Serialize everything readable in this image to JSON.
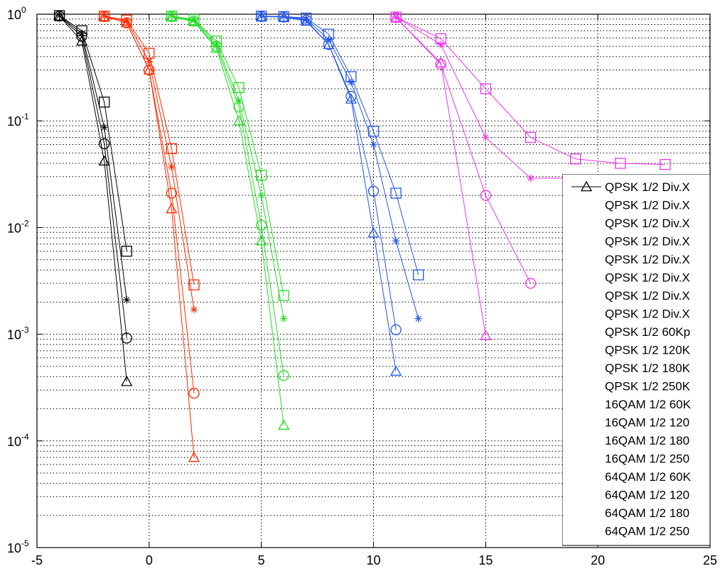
{
  "chart_data": {
    "type": "line",
    "title": "",
    "xlabel": "",
    "ylabel": "",
    "xlim": [
      -5,
      25
    ],
    "ylim": [
      1e-05,
      1
    ],
    "yscale": "log",
    "grid": true,
    "x_ticks": [
      "-5",
      "0",
      "5",
      "10",
      "15",
      "20",
      "25"
    ],
    "y_ticks": [
      {
        "base": "10",
        "exp": "0"
      },
      {
        "base": "10",
        "exp": "-1"
      },
      {
        "base": "10",
        "exp": "-2"
      },
      {
        "base": "10",
        "exp": "-3"
      },
      {
        "base": "10",
        "exp": "-4"
      },
      {
        "base": "10",
        "exp": "-5"
      }
    ],
    "legend_position": "right",
    "legend": [
      "QPSK 1/2 Div.X",
      "QPSK 1/2 Div.X",
      "QPSK 1/2 Div.X",
      "QPSK 1/2 Div.X",
      "QPSK 1/2 Div.X",
      "QPSK 1/2 Div.X",
      "QPSK 1/2 Div.X",
      "QPSK 1/2 Div.X",
      "QPSK 1/2 60Kp",
      "QPSK 1/2 120K",
      "QPSK 1/2 180K",
      "QPSK 1/2 250K",
      "16QAM 1/2 60K",
      "16QAM 1/2 120",
      "16QAM 1/2 180",
      "16QAM 1/2 250",
      "64QAM 1/2 60K",
      "64QAM 1/2 120",
      "64QAM 1/2 180",
      "64QAM 1/2 250"
    ],
    "series": [
      {
        "color": "#000000",
        "marker": "triangle",
        "x": [
          -4,
          -3,
          -2,
          -1
        ],
        "y": [
          0.96,
          0.56,
          0.042,
          0.00036
        ]
      },
      {
        "color": "#000000",
        "marker": "circle",
        "x": [
          -4,
          -3,
          -2,
          -1
        ],
        "y": [
          0.96,
          0.62,
          0.061,
          0.00092
        ]
      },
      {
        "color": "#000000",
        "marker": "star",
        "x": [
          -4,
          -3,
          -2,
          -1
        ],
        "y": [
          0.97,
          0.66,
          0.087,
          0.0021
        ]
      },
      {
        "color": "#000000",
        "marker": "square",
        "x": [
          -4,
          -3,
          -2,
          -1
        ],
        "y": [
          0.97,
          0.7,
          0.15,
          0.006
        ]
      },
      {
        "color": "#ff2a00",
        "marker": "triangle",
        "x": [
          -2,
          -1,
          0,
          1,
          2
        ],
        "y": [
          0.95,
          0.83,
          0.3,
          0.015,
          7e-05
        ]
      },
      {
        "color": "#ff2a00",
        "marker": "circle",
        "x": [
          -2,
          -1,
          0,
          1,
          2
        ],
        "y": [
          0.95,
          0.83,
          0.3,
          0.021,
          0.00028
        ]
      },
      {
        "color": "#ff2a00",
        "marker": "star",
        "x": [
          -2,
          -1,
          0,
          1,
          2
        ],
        "y": [
          0.96,
          0.86,
          0.36,
          0.037,
          0.0017
        ]
      },
      {
        "color": "#ff2a00",
        "marker": "square",
        "x": [
          -2,
          -1,
          0,
          1,
          2
        ],
        "y": [
          0.96,
          0.88,
          0.43,
          0.055,
          0.0029
        ]
      },
      {
        "color": "#22dd22",
        "marker": "triangle",
        "x": [
          1,
          2,
          3,
          4,
          5,
          6
        ],
        "y": [
          0.95,
          0.85,
          0.48,
          0.1,
          0.0075,
          0.00014
        ]
      },
      {
        "color": "#22dd22",
        "marker": "circle",
        "x": [
          1,
          2,
          3,
          4,
          5,
          6
        ],
        "y": [
          0.95,
          0.86,
          0.5,
          0.135,
          0.0105,
          0.00041
        ]
      },
      {
        "color": "#22dd22",
        "marker": "star",
        "x": [
          1,
          2,
          3,
          4,
          5,
          6
        ],
        "y": [
          0.96,
          0.88,
          0.53,
          0.155,
          0.02,
          0.0014
        ]
      },
      {
        "color": "#22dd22",
        "marker": "square",
        "x": [
          1,
          2,
          3,
          4,
          5,
          6
        ],
        "y": [
          0.96,
          0.89,
          0.56,
          0.205,
          0.031,
          0.0023
        ]
      },
      {
        "color": "#2255ee",
        "marker": "triangle",
        "x": [
          5,
          6,
          7,
          8,
          9,
          10,
          11
        ],
        "y": [
          0.95,
          0.94,
          0.86,
          0.52,
          0.16,
          0.0089,
          0.00045
        ]
      },
      {
        "color": "#2255ee",
        "marker": "circle",
        "x": [
          5,
          6,
          7,
          8,
          9,
          10,
          11
        ],
        "y": [
          0.95,
          0.94,
          0.88,
          0.52,
          0.17,
          0.022,
          0.0011
        ]
      },
      {
        "color": "#2255ee",
        "marker": "star",
        "x": [
          5,
          6,
          7,
          8,
          9,
          10,
          11,
          12
        ],
        "y": [
          0.96,
          0.95,
          0.9,
          0.58,
          0.23,
          0.06,
          0.0075,
          0.0014
        ]
      },
      {
        "color": "#2255ee",
        "marker": "square",
        "x": [
          5,
          6,
          7,
          8,
          9,
          10,
          11,
          12
        ],
        "y": [
          0.96,
          0.95,
          0.92,
          0.65,
          0.26,
          0.08,
          0.021,
          0.0036
        ]
      },
      {
        "color": "#ee33ee",
        "marker": "triangle",
        "x": [
          11,
          13,
          15
        ],
        "y": [
          0.93,
          0.35,
          0.00097
        ]
      },
      {
        "color": "#ee33ee",
        "marker": "circle",
        "x": [
          11,
          13,
          15,
          17
        ],
        "y": [
          0.93,
          0.34,
          0.02,
          0.003
        ]
      },
      {
        "color": "#ee33ee",
        "marker": "star",
        "x": [
          11,
          13,
          15,
          17,
          19
        ],
        "y": [
          0.94,
          0.52,
          0.07,
          0.029,
          0.029
        ]
      },
      {
        "color": "#ee33ee",
        "marker": "square",
        "x": [
          11,
          13,
          15,
          17,
          19,
          21,
          23
        ],
        "y": [
          0.94,
          0.59,
          0.2,
          0.07,
          0.044,
          0.04,
          0.039
        ]
      }
    ]
  }
}
